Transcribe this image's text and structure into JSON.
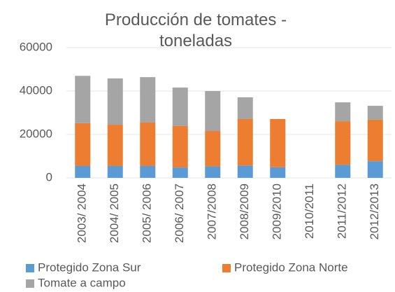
{
  "chart_data": {
    "type": "stacked_bar",
    "title": "Producción de tomates - toneladas",
    "categories": [
      "2003/ 2004",
      "2004/ 2005",
      "2005/ 2006",
      "2006/ 2007",
      "2007/2008",
      "2008/2009",
      "2009/2010",
      "2010/2011",
      "2011/2012",
      "2012/2013"
    ],
    "series": [
      {
        "name": "Protegido Zona Sur",
        "color": "#5b9bd5",
        "values": [
          5500,
          5500,
          5500,
          4800,
          5300,
          5700,
          4900,
          0,
          6000,
          7700
        ]
      },
      {
        "name": "Protegido Zona Norte",
        "color": "#ed7d31",
        "values": [
          19700,
          19000,
          20000,
          19100,
          16300,
          21400,
          22200,
          0,
          20100,
          19100
        ]
      },
      {
        "name": "Tomate a campo",
        "color": "#a5a5a5",
        "values": [
          21800,
          21300,
          20900,
          17700,
          18400,
          10000,
          0,
          0,
          8700,
          6400
        ]
      }
    ],
    "ylim": [
      0,
      60000
    ],
    "yticks": [
      0,
      20000,
      40000,
      60000
    ],
    "grid": true,
    "legend": "bottom"
  }
}
